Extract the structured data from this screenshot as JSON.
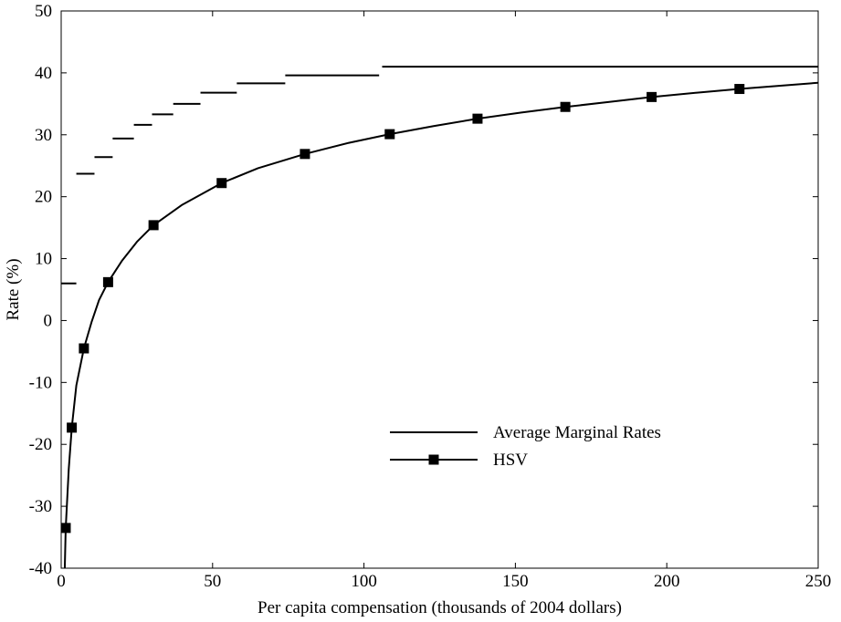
{
  "chart_data": {
    "type": "line",
    "title": "",
    "xlabel": "Per capita compensation (thousands of 2004 dollars)",
    "ylabel": "Rate (%)",
    "xlim": [
      0,
      250
    ],
    "ylim": [
      -40,
      50
    ],
    "xticks": [
      0,
      50,
      100,
      150,
      200,
      250
    ],
    "yticks": [
      -40,
      -30,
      -20,
      -10,
      0,
      10,
      20,
      30,
      40,
      50
    ],
    "grid": false,
    "legend_position": "center-right",
    "colors": {
      "line": "#000000"
    },
    "series": [
      {
        "name": "Average Marginal Rates",
        "style": "step-segments",
        "segments": [
          {
            "x": [
              0,
              5
            ],
            "y": 6.0
          },
          {
            "x": [
              5,
              11
            ],
            "y": 23.7
          },
          {
            "x": [
              11,
              17
            ],
            "y": 26.4
          },
          {
            "x": [
              17,
              24
            ],
            "y": 29.4
          },
          {
            "x": [
              24,
              30
            ],
            "y": 31.6
          },
          {
            "x": [
              30,
              37
            ],
            "y": 33.3
          },
          {
            "x": [
              37,
              46
            ],
            "y": 35.0
          },
          {
            "x": [
              46,
              58
            ],
            "y": 36.8
          },
          {
            "x": [
              58,
              74
            ],
            "y": 38.3
          },
          {
            "x": [
              74,
              105
            ],
            "y": 39.6
          },
          {
            "x": [
              106,
              250
            ],
            "y": 41.0
          }
        ]
      },
      {
        "name": "HSV",
        "style": "line-with-square-markers",
        "curve": [
          {
            "x": 1.0,
            "y": -44
          },
          {
            "x": 1.5,
            "y": -33.5
          },
          {
            "x": 2.5,
            "y": -24
          },
          {
            "x": 3.5,
            "y": -17.3
          },
          {
            "x": 5,
            "y": -10.5
          },
          {
            "x": 7.5,
            "y": -4.5
          },
          {
            "x": 10,
            "y": -0.3
          },
          {
            "x": 12.5,
            "y": 3.3
          },
          {
            "x": 15.5,
            "y": 6.2
          },
          {
            "x": 20,
            "y": 9.6
          },
          {
            "x": 25,
            "y": 12.7
          },
          {
            "x": 30.5,
            "y": 15.4
          },
          {
            "x": 40,
            "y": 18.7
          },
          {
            "x": 53,
            "y": 22.2
          },
          {
            "x": 65,
            "y": 24.6
          },
          {
            "x": 80.5,
            "y": 26.9
          },
          {
            "x": 95,
            "y": 28.7
          },
          {
            "x": 108.5,
            "y": 30.1
          },
          {
            "x": 123,
            "y": 31.4
          },
          {
            "x": 137.5,
            "y": 32.6
          },
          {
            "x": 152,
            "y": 33.6
          },
          {
            "x": 166.5,
            "y": 34.5
          },
          {
            "x": 181,
            "y": 35.3
          },
          {
            "x": 195,
            "y": 36.1
          },
          {
            "x": 210,
            "y": 36.8
          },
          {
            "x": 224,
            "y": 37.4
          },
          {
            "x": 237,
            "y": 37.9
          },
          {
            "x": 250,
            "y": 38.4
          }
        ],
        "markers": [
          {
            "x": 1.5,
            "y": -33.5
          },
          {
            "x": 3.5,
            "y": -17.3
          },
          {
            "x": 7.5,
            "y": -4.5
          },
          {
            "x": 15.5,
            "y": 6.2
          },
          {
            "x": 30.5,
            "y": 15.4
          },
          {
            "x": 53,
            "y": 22.2
          },
          {
            "x": 80.5,
            "y": 26.9
          },
          {
            "x": 108.5,
            "y": 30.1
          },
          {
            "x": 137.5,
            "y": 32.6
          },
          {
            "x": 166.5,
            "y": 34.5
          },
          {
            "x": 195,
            "y": 36.1
          },
          {
            "x": 224,
            "y": 37.4
          }
        ]
      }
    ]
  }
}
